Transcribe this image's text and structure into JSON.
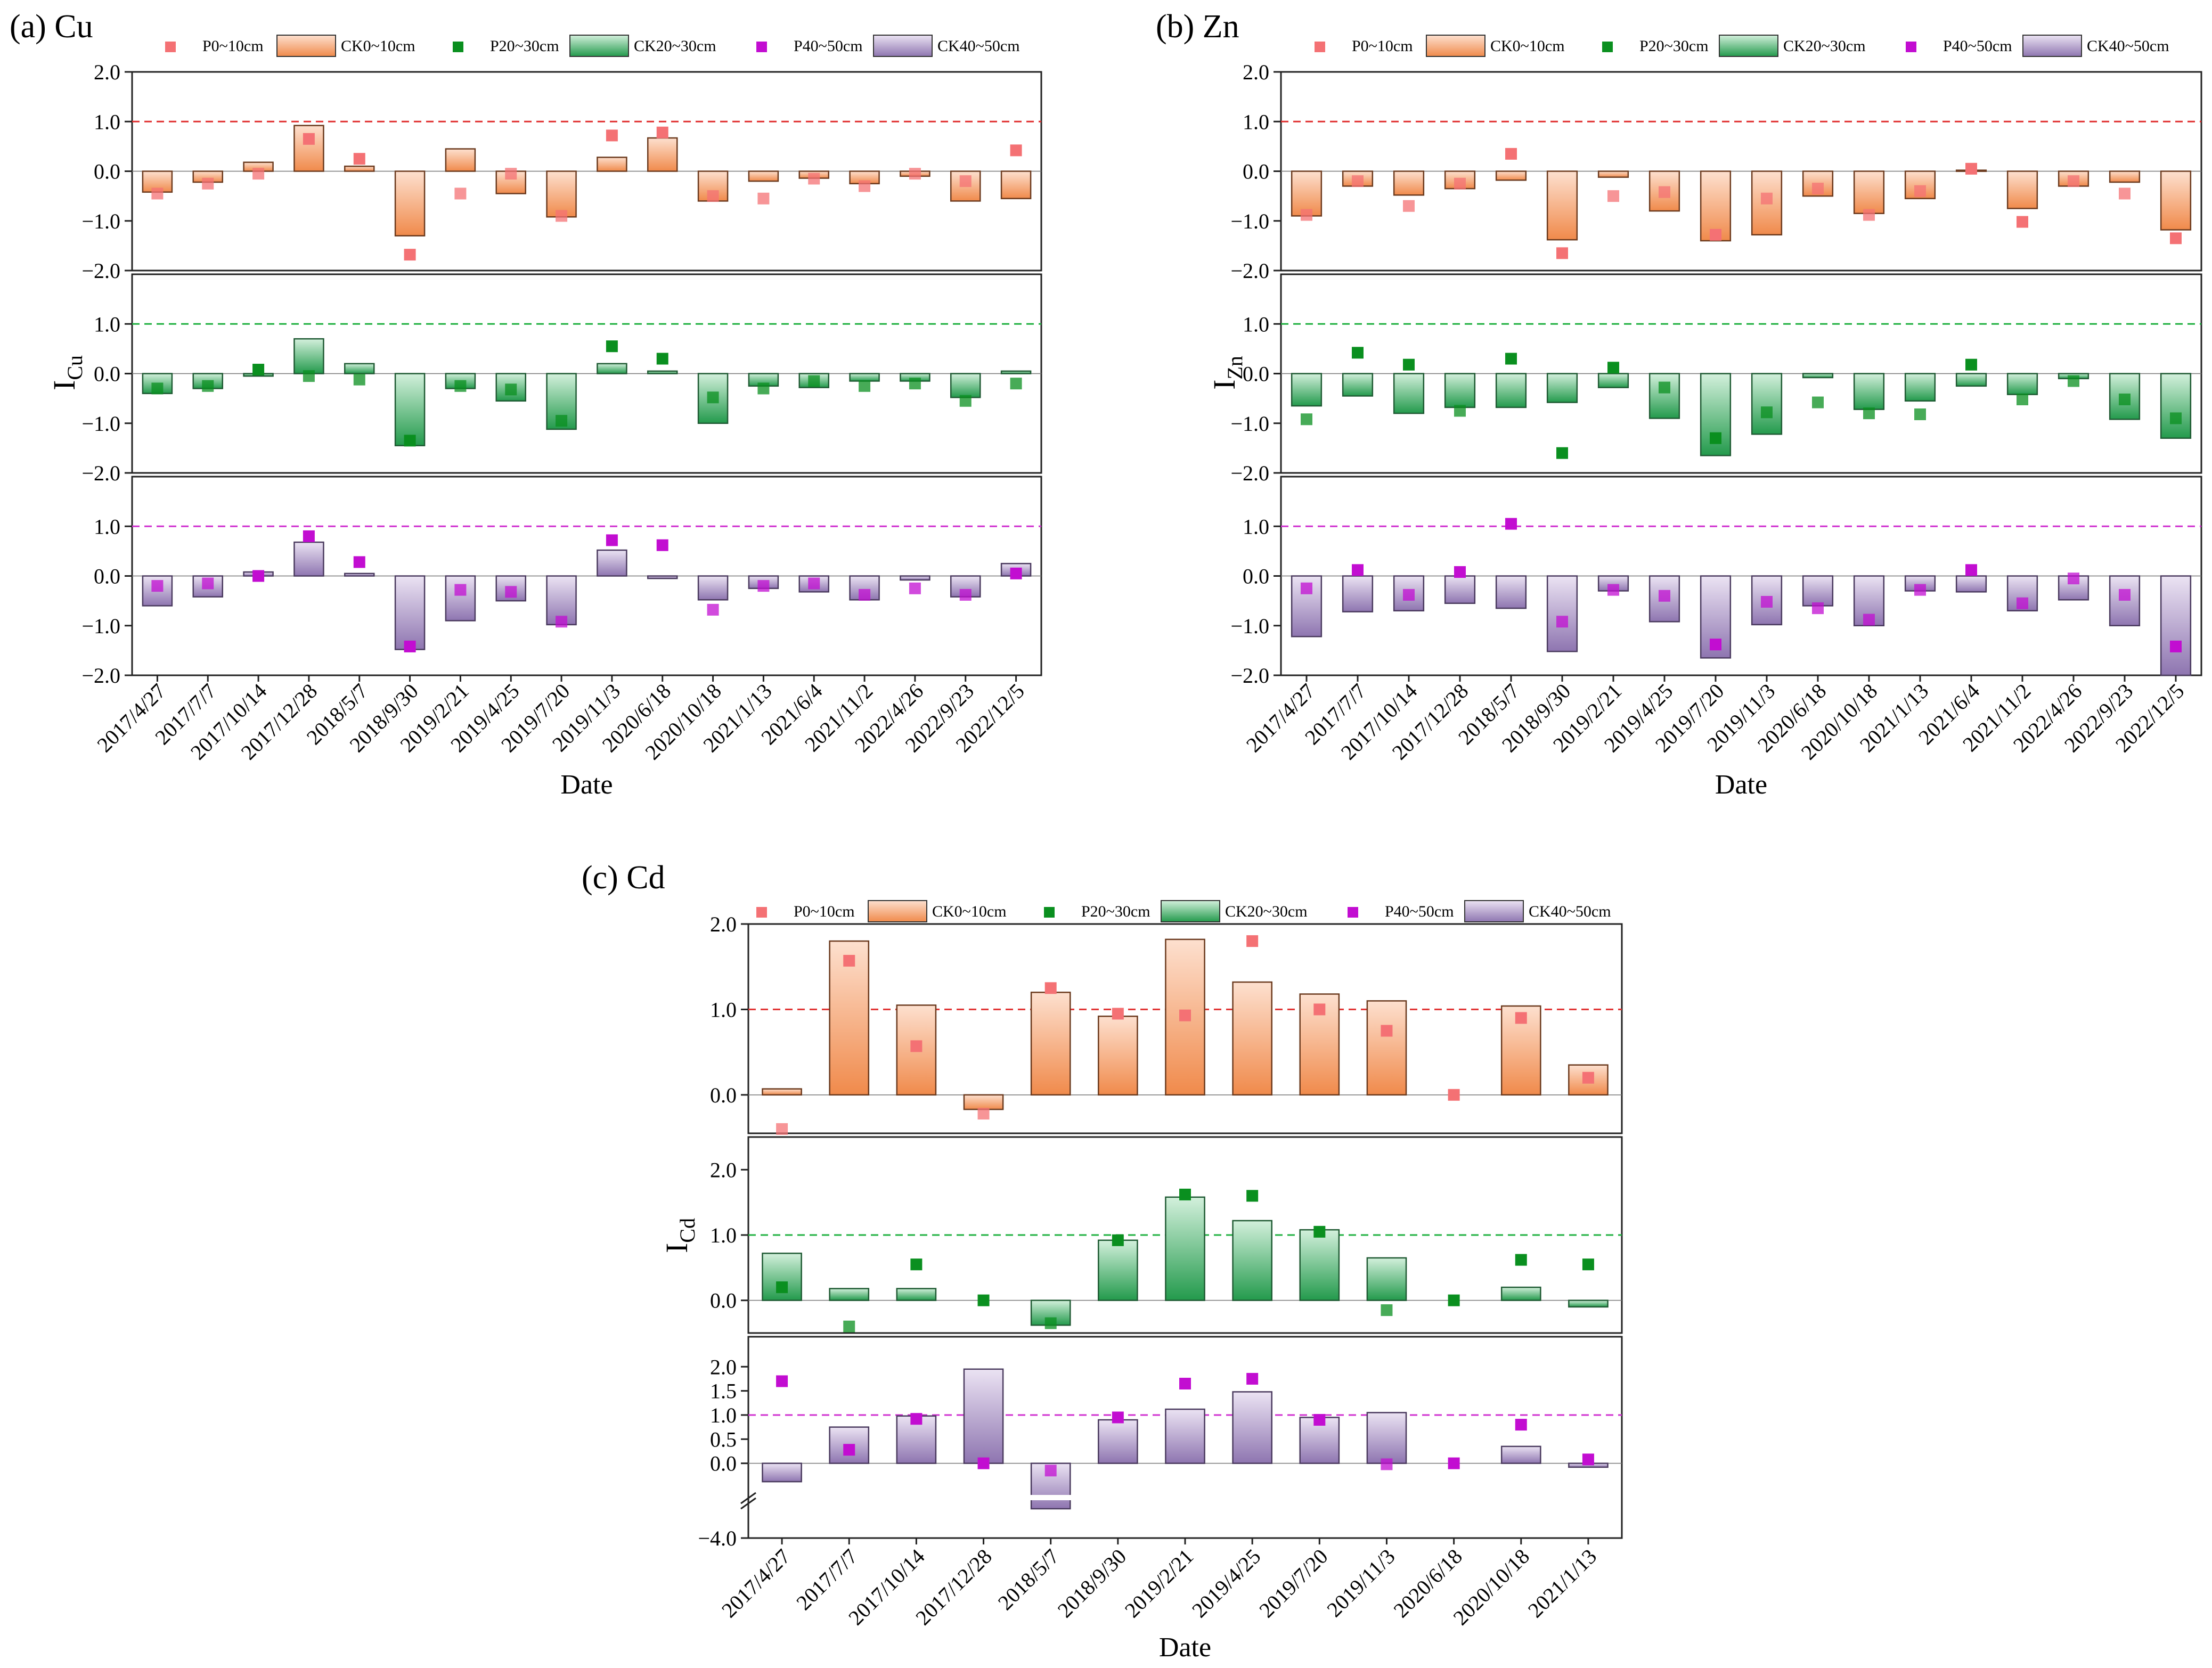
{
  "figure": {
    "legend": [
      {
        "key": "P0",
        "label": "P0~10cm",
        "kind": "marker",
        "color": "#f47174"
      },
      {
        "key": "CK0",
        "label": "CK0~10cm",
        "kind": "bar",
        "color": "#f08a4b"
      },
      {
        "key": "P20",
        "label": "P20~30cm",
        "kind": "marker",
        "color": "#0a8f1f"
      },
      {
        "key": "CK20",
        "label": "CK20~30cm",
        "kind": "bar",
        "color": "#3aaa62"
      },
      {
        "key": "P40",
        "label": "P40~50cm",
        "kind": "marker",
        "color": "#c20dd1"
      },
      {
        "key": "CK40",
        "label": "CK40~50cm",
        "kind": "bar",
        "color": "#8e75b0"
      }
    ],
    "colors": {
      "orange_top": "#fde0cf",
      "orange_bottom": "#f08a4b",
      "green_top": "#d3f0dc",
      "green_bottom": "#239a4c",
      "purple_top": "#ebe3f3",
      "purple_bottom": "#8e75b0",
      "ref_red": "#e03030",
      "ref_green": "#20b040",
      "ref_purple": "#d030d0"
    }
  },
  "chart_data": [
    {
      "id": "a",
      "type": "bar",
      "title": "(a) Cu",
      "ylabel_main": "I",
      "ylabel_sub": "Cu",
      "xlabel": "Date",
      "categories": [
        "2017/4/27",
        "2017/7/7",
        "2017/10/14",
        "2017/12/28",
        "2018/5/7",
        "2018/9/30",
        "2019/2/21",
        "2019/4/25",
        "2019/7/20",
        "2019/11/3",
        "2020/6/18",
        "2020/10/18",
        "2021/1/13",
        "2021/6/4",
        "2021/11/2",
        "2022/4/26",
        "2022/9/23",
        "2022/12/5"
      ],
      "reference_line": 1.0,
      "panels": [
        {
          "depth": "0~10cm",
          "ylim": [
            -2.0,
            2.0
          ],
          "yticks": [
            "2.0",
            "1.0",
            "0.0",
            "−1.0",
            "−2.0"
          ],
          "ytick_values": [
            2,
            1,
            0,
            -1,
            -2
          ],
          "CK": [
            -0.42,
            -0.22,
            0.18,
            0.92,
            0.1,
            -1.3,
            0.45,
            -0.45,
            -0.92,
            0.28,
            0.67,
            -0.6,
            -0.2,
            -0.14,
            -0.25,
            -0.1,
            -0.6,
            -0.55
          ],
          "P": [
            -0.45,
            -0.25,
            -0.05,
            0.65,
            0.25,
            -1.68,
            -0.45,
            -0.05,
            -0.9,
            0.72,
            0.78,
            -0.5,
            -0.55,
            -0.15,
            -0.3,
            -0.05,
            -0.2,
            0.42
          ]
        },
        {
          "depth": "20~30cm",
          "ylim": [
            -2.0,
            2.0
          ],
          "yticks": [
            "1.0",
            "0.0",
            "−1.0",
            "−2.0"
          ],
          "ytick_values": [
            1,
            0,
            -1,
            -2
          ],
          "CK": [
            -0.4,
            -0.3,
            -0.05,
            0.7,
            0.2,
            -1.45,
            -0.3,
            -0.55,
            -1.12,
            0.2,
            0.05,
            -1.0,
            -0.25,
            -0.28,
            -0.15,
            -0.15,
            -0.48,
            0.05
          ],
          "P": [
            -0.3,
            -0.25,
            0.08,
            -0.05,
            -0.12,
            -1.35,
            -0.25,
            -0.32,
            -0.95,
            0.55,
            0.3,
            -0.48,
            -0.3,
            -0.15,
            -0.25,
            -0.2,
            -0.55,
            -0.2
          ]
        },
        {
          "depth": "40~50cm",
          "ylim": [
            -2.0,
            2.0
          ],
          "yticks": [
            "1.0",
            "0.0",
            "−1.0",
            "−2.0"
          ],
          "ytick_values": [
            1,
            0,
            -1,
            -2
          ],
          "CK": [
            -0.6,
            -0.42,
            0.08,
            0.68,
            0.05,
            -1.48,
            -0.9,
            -0.5,
            -0.98,
            0.52,
            -0.05,
            -0.48,
            -0.25,
            -0.32,
            -0.48,
            -0.08,
            -0.42,
            0.25
          ],
          "P": [
            -0.2,
            -0.15,
            0.0,
            0.8,
            0.28,
            -1.42,
            -0.28,
            -0.32,
            -0.92,
            0.72,
            0.62,
            -0.68,
            -0.2,
            -0.15,
            -0.38,
            -0.25,
            -0.38,
            0.05
          ]
        }
      ]
    },
    {
      "id": "b",
      "type": "bar",
      "title": "(b) Zn",
      "ylabel_main": "I",
      "ylabel_sub": "Zn",
      "xlabel": "Date",
      "categories": [
        "2017/4/27",
        "2017/7/7",
        "2017/10/14",
        "2017/12/28",
        "2018/5/7",
        "2018/9/30",
        "2019/2/21",
        "2019/4/25",
        "2019/7/20",
        "2019/11/3",
        "2020/6/18",
        "2020/10/18",
        "2021/1/13",
        "2021/6/4",
        "2021/11/2",
        "2022/4/26",
        "2022/9/23",
        "2022/12/5"
      ],
      "reference_line": 1.0,
      "panels": [
        {
          "depth": "0~10cm",
          "ylim": [
            -2.0,
            2.0
          ],
          "yticks": [
            "2.0",
            "1.0",
            "0.0",
            "−1.0",
            "−2.0"
          ],
          "ytick_values": [
            2,
            1,
            0,
            -1,
            -2
          ],
          "CK": [
            -0.9,
            -0.3,
            -0.48,
            -0.35,
            -0.18,
            -1.38,
            -0.12,
            -0.8,
            -1.4,
            -1.28,
            -0.5,
            -0.85,
            -0.55,
            0.02,
            -0.75,
            -0.3,
            -0.22,
            -1.18
          ],
          "P": [
            -0.88,
            -0.2,
            -0.7,
            -0.25,
            0.35,
            -1.65,
            -0.5,
            -0.42,
            -1.28,
            -0.55,
            -0.35,
            -0.88,
            -0.4,
            0.05,
            -1.02,
            -0.2,
            -0.45,
            -1.35
          ]
        },
        {
          "depth": "20~30cm",
          "ylim": [
            -2.0,
            2.0
          ],
          "yticks": [
            "1.0",
            "0.0",
            "−1.0",
            "−2.0"
          ],
          "ytick_values": [
            1,
            0,
            -1,
            -2
          ],
          "CK": [
            -0.65,
            -0.45,
            -0.8,
            -0.68,
            -0.68,
            -0.58,
            -0.28,
            -0.9,
            -1.65,
            -1.22,
            -0.08,
            -0.72,
            -0.55,
            -0.25,
            -0.42,
            -0.1,
            -0.92,
            -1.3
          ],
          "P": [
            -0.92,
            0.42,
            0.18,
            -0.75,
            0.3,
            -1.6,
            0.12,
            -0.28,
            -1.3,
            -0.78,
            -0.58,
            -0.8,
            -0.82,
            0.18,
            -0.52,
            -0.15,
            -0.52,
            -0.9
          ]
        },
        {
          "depth": "40~50cm",
          "ylim": [
            -2.0,
            2.0
          ],
          "yticks": [
            "1.0",
            "0.0",
            "−1.0",
            "−2.0"
          ],
          "ytick_values": [
            1,
            0,
            -1,
            -2
          ],
          "CK": [
            -1.22,
            -0.72,
            -0.7,
            -0.55,
            -0.65,
            -1.52,
            -0.3,
            -0.92,
            -1.65,
            -0.98,
            -0.6,
            -1.0,
            -0.3,
            -0.32,
            -0.7,
            -0.48,
            -1.0,
            -2.0
          ],
          "P": [
            -0.25,
            0.12,
            -0.38,
            0.08,
            1.05,
            -0.92,
            -0.28,
            -0.4,
            -1.38,
            -0.52,
            -0.65,
            -0.88,
            -0.28,
            0.12,
            -0.55,
            -0.05,
            -0.38,
            -1.42
          ]
        }
      ]
    },
    {
      "id": "c",
      "type": "bar",
      "title": "(c) Cd",
      "ylabel_main": "I",
      "ylabel_sub": "Cd",
      "xlabel": "Date",
      "categories": [
        "2017/4/27",
        "2017/7/7",
        "2017/10/14",
        "2017/12/28",
        "2018/5/7",
        "2018/9/30",
        "2019/2/21",
        "2019/4/25",
        "2019/7/20",
        "2019/11/3",
        "2020/6/18",
        "2020/10/18",
        "2021/1/13"
      ],
      "reference_line": 1.0,
      "panels": [
        {
          "depth": "0~10cm",
          "ylim": [
            -0.45,
            2.0
          ],
          "yticks": [
            "2.0",
            "1.0",
            "0.0"
          ],
          "ytick_values": [
            2,
            1,
            0
          ],
          "CK": [
            0.07,
            1.8,
            1.05,
            -0.17,
            1.2,
            0.92,
            1.82,
            1.32,
            1.18,
            1.1,
            null,
            1.04,
            0.35
          ],
          "P": [
            -0.4,
            1.57,
            0.57,
            -0.22,
            1.25,
            0.95,
            0.93,
            1.8,
            1.0,
            0.75,
            0.0,
            0.9,
            0.2
          ]
        },
        {
          "depth": "20~30cm",
          "ylim": [
            -0.5,
            2.5
          ],
          "yticks": [
            "2.0",
            "1.0",
            "0.0"
          ],
          "ytick_values": [
            2,
            1,
            0
          ],
          "CK": [
            0.72,
            0.18,
            0.18,
            null,
            -0.38,
            0.92,
            1.58,
            1.22,
            1.08,
            0.65,
            null,
            0.2,
            -0.1
          ],
          "P": [
            0.2,
            -0.4,
            0.55,
            0.0,
            -0.35,
            0.92,
            1.62,
            1.6,
            1.05,
            -0.15,
            0.0,
            0.62,
            0.55
          ]
        },
        {
          "depth": "40~50cm",
          "ylim": [
            -4.0,
            2.4
          ],
          "axis_break": [
            -0.5,
            -3.5
          ],
          "yticks": [
            "2.0",
            "1.5",
            "1.0",
            "0.5",
            "0.0",
            "−4.0"
          ],
          "ytick_values": [
            2,
            1.5,
            1,
            0.5,
            0,
            -4
          ],
          "CK": [
            -0.38,
            0.75,
            0.98,
            1.95,
            -3.2,
            0.9,
            1.12,
            1.48,
            0.95,
            1.05,
            null,
            0.35,
            -0.08
          ],
          "P": [
            1.7,
            0.28,
            0.92,
            0.0,
            -0.15,
            0.95,
            1.65,
            1.75,
            0.9,
            -0.02,
            0.0,
            0.8,
            0.08
          ]
        }
      ]
    }
  ]
}
